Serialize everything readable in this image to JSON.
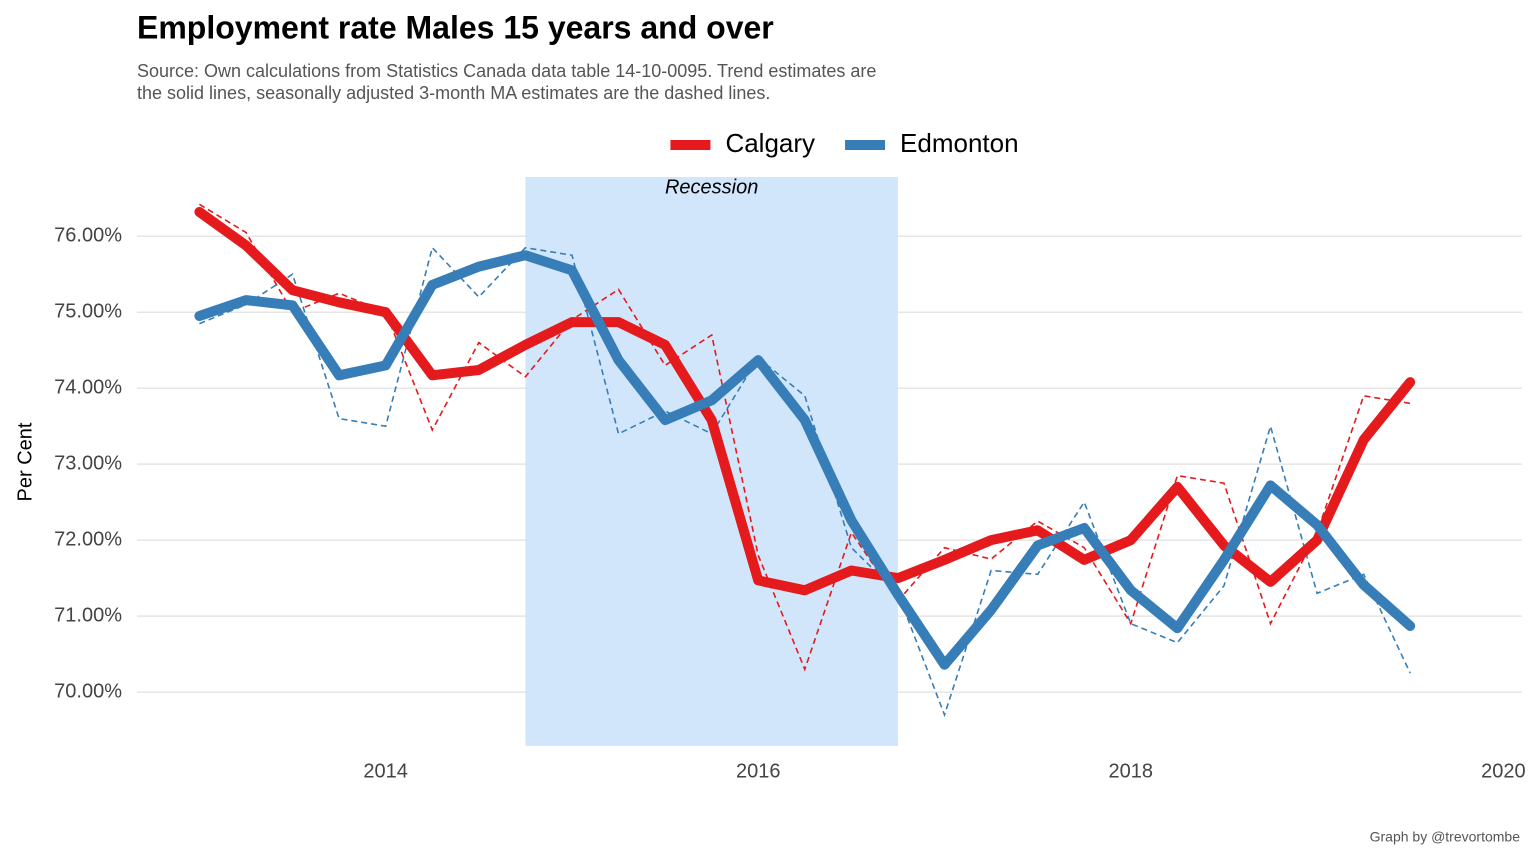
{
  "chart_data": {
    "type": "line",
    "title": "Employment rate Males 15 years and over",
    "subtitle": [
      "Source: Own calculations from Statistics Canada data table 14-10-0095. Trend estimates are",
      "the solid lines, seasonally adjusted 3-month MA estimates are the dashed lines."
    ],
    "y_label": "Per Cent",
    "caption": "Graph by @trevortombe",
    "legend": "top",
    "grid": true,
    "x": [
      2013.0,
      2013.25,
      2013.5,
      2013.75,
      2014.0,
      2014.25,
      2014.5,
      2014.75,
      2015.0,
      2015.25,
      2015.5,
      2015.75,
      2016.0,
      2016.25,
      2016.5,
      2016.75,
      2017.0,
      2017.25,
      2017.5,
      2017.75,
      2018.0,
      2018.25,
      2018.5,
      2018.75,
      2019.0,
      2019.25,
      2019.5
    ],
    "series": [
      {
        "name": "Calgary",
        "color": "#e41a1c",
        "values": [
          76.32,
          75.88,
          75.29,
          75.13,
          75.0,
          74.17,
          74.24,
          74.57,
          74.87,
          74.87,
          74.57,
          73.58,
          71.47,
          71.34,
          71.6,
          71.5,
          71.74,
          72.0,
          72.13,
          71.74,
          72.0,
          72.7,
          71.93,
          71.45,
          72.0,
          73.32,
          74.08
        ],
        "ma_values": [
          76.42,
          76.05,
          75.0,
          75.25,
          75.0,
          73.45,
          74.6,
          74.15,
          74.9,
          75.3,
          74.3,
          74.7,
          71.8,
          70.3,
          72.1,
          71.2,
          71.9,
          71.75,
          72.25,
          71.9,
          70.9,
          72.85,
          72.75,
          70.9,
          72.1,
          73.9,
          73.8
        ]
      },
      {
        "name": "Edmonton",
        "color": "#377eb8",
        "values": [
          74.95,
          75.16,
          75.09,
          74.17,
          74.3,
          75.36,
          75.6,
          75.75,
          75.55,
          74.37,
          73.58,
          73.84,
          74.37,
          73.58,
          72.26,
          71.28,
          70.36,
          71.08,
          71.93,
          72.16,
          71.34,
          70.84,
          71.74,
          72.72,
          72.2,
          71.41,
          70.87
        ],
        "ma_values": [
          74.85,
          75.1,
          75.5,
          73.6,
          73.5,
          75.85,
          75.2,
          75.85,
          75.75,
          73.4,
          73.7,
          73.4,
          74.4,
          73.9,
          71.9,
          71.3,
          69.7,
          71.6,
          71.55,
          72.5,
          70.9,
          70.65,
          71.4,
          73.5,
          71.3,
          71.55,
          70.25
        ]
      }
    ],
    "recession": {
      "label": "Recession",
      "start": 2014.75,
      "end": 2016.75,
      "color": "#d2e6fb"
    },
    "xlim": [
      2012.665,
      2020.1
    ],
    "xticks": [
      2014,
      2016,
      2018,
      2020
    ],
    "ylim": [
      69.29,
      76.78
    ],
    "yticks": [
      {
        "value": 70,
        "label": "70.00%"
      },
      {
        "value": 71,
        "label": "71.00%"
      },
      {
        "value": 72,
        "label": "72.00%"
      },
      {
        "value": 73,
        "label": "73.00%"
      },
      {
        "value": 74,
        "label": "74.00%"
      },
      {
        "value": 75,
        "label": "75.00%"
      },
      {
        "value": 76,
        "label": "76.00%"
      }
    ]
  }
}
